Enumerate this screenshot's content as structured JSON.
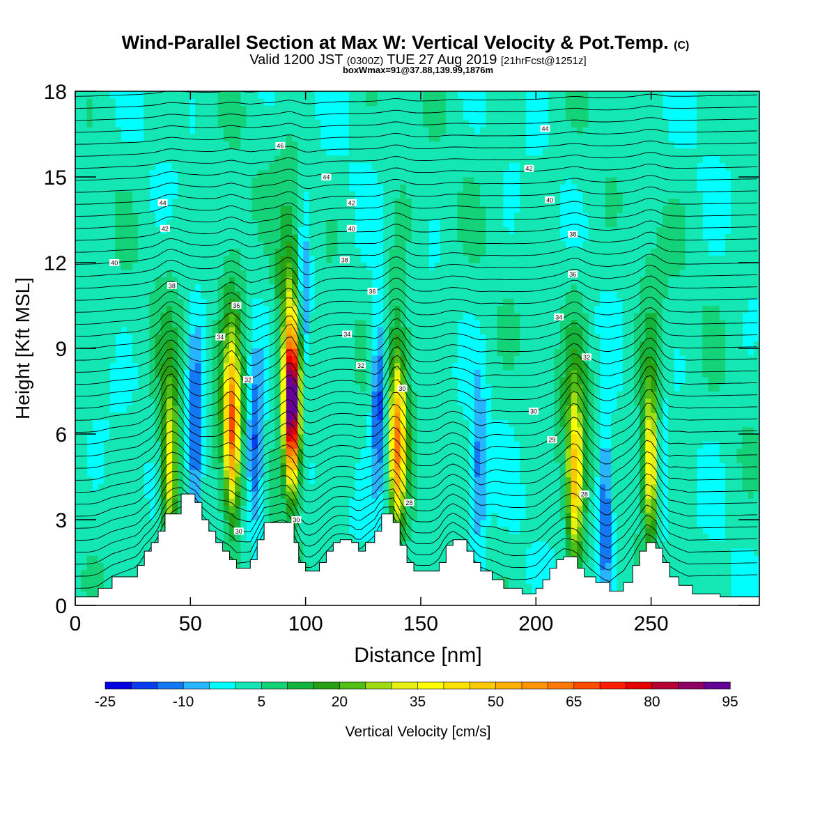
{
  "chart_data": {
    "type": "heatmap",
    "title": "Wind-Parallel Section at Max W: Vertical Velocity & Pot.Temp.",
    "title_mark": "(C)",
    "subtitle": {
      "a": "Valid 1200 JST",
      "b": "(0300Z)",
      "c": "TUE 27 Aug 2019",
      "d": "[21hrFcst@1251z]"
    },
    "subtitle2": "boxWmax=91@37.88,139.99,1876m",
    "xlabel": "Distance [nm]",
    "ylabel": "Height [Kft MSL]",
    "xlim": [
      0,
      297
    ],
    "ylim": [
      0,
      18
    ],
    "xticks": [
      "0",
      "50",
      "100",
      "150",
      "200",
      "250"
    ],
    "xtick_values": [
      0,
      50,
      100,
      150,
      200,
      250
    ],
    "yticks": [
      "0",
      "3",
      "6",
      "9",
      "12",
      "15",
      "18"
    ],
    "ytick_values": [
      0,
      3,
      6,
      9,
      12,
      15,
      18
    ],
    "colorbar": {
      "label": "Vertical Velocity [cm/s]",
      "tick_labels": [
        "-25",
        "-10",
        "5",
        "20",
        "35",
        "50",
        "65",
        "80",
        "95"
      ],
      "tick_values": [
        -25,
        -10,
        5,
        20,
        35,
        50,
        65,
        80,
        95
      ],
      "levels": [
        -25,
        -20,
        -15,
        -10,
        -5,
        0,
        5,
        10,
        15,
        20,
        25,
        30,
        35,
        40,
        45,
        50,
        55,
        60,
        65,
        70,
        75,
        80,
        85,
        90,
        95
      ],
      "colors": [
        "#0000e6",
        "#0a3cf0",
        "#1478f5",
        "#28b4ff",
        "#00ffff",
        "#14e6b4",
        "#14d278",
        "#14b43c",
        "#28a014",
        "#50be14",
        "#a0dc14",
        "#e6f014",
        "#ffff00",
        "#ffe100",
        "#ffc800",
        "#ffaf00",
        "#ff9600",
        "#ff7800",
        "#ff4b00",
        "#ff1e00",
        "#e60000",
        "#b40032",
        "#8c0064",
        "#640096"
      ]
    },
    "theta_contour_labels": [
      {
        "x": 38,
        "y": 14.1,
        "text": "44"
      },
      {
        "x": 39,
        "y": 13.2,
        "text": "42"
      },
      {
        "x": 17,
        "y": 12.0,
        "text": "40"
      },
      {
        "x": 42,
        "y": 11.2,
        "text": "38"
      },
      {
        "x": 70,
        "y": 10.5,
        "text": "36"
      },
      {
        "x": 63,
        "y": 9.4,
        "text": "34"
      },
      {
        "x": 75,
        "y": 7.9,
        "text": "32"
      },
      {
        "x": 89,
        "y": 16.1,
        "text": "46"
      },
      {
        "x": 109,
        "y": 15.0,
        "text": "44"
      },
      {
        "x": 120,
        "y": 14.1,
        "text": "42"
      },
      {
        "x": 120,
        "y": 13.2,
        "text": "40"
      },
      {
        "x": 117,
        "y": 12.1,
        "text": "38"
      },
      {
        "x": 129,
        "y": 11.0,
        "text": "36"
      },
      {
        "x": 118,
        "y": 9.5,
        "text": "34"
      },
      {
        "x": 124,
        "y": 8.4,
        "text": "32"
      },
      {
        "x": 142,
        "y": 7.6,
        "text": "30"
      },
      {
        "x": 71,
        "y": 2.6,
        "text": "30"
      },
      {
        "x": 96,
        "y": 3.0,
        "text": "30"
      },
      {
        "x": 145,
        "y": 3.6,
        "text": "28"
      },
      {
        "x": 204,
        "y": 16.7,
        "text": "44"
      },
      {
        "x": 197,
        "y": 15.3,
        "text": "42"
      },
      {
        "x": 206,
        "y": 14.2,
        "text": "40"
      },
      {
        "x": 216,
        "y": 13.0,
        "text": "38"
      },
      {
        "x": 216,
        "y": 11.6,
        "text": "36"
      },
      {
        "x": 210,
        "y": 10.1,
        "text": "34"
      },
      {
        "x": 222,
        "y": 8.7,
        "text": "32"
      },
      {
        "x": 199,
        "y": 6.8,
        "text": "30"
      },
      {
        "x": 207,
        "y": 5.8,
        "text": "29"
      },
      {
        "x": 221,
        "y": 3.9,
        "text": "28"
      }
    ],
    "terrain": [
      [
        0,
        0.3
      ],
      [
        10,
        0.6
      ],
      [
        16,
        1.0
      ],
      [
        27,
        1.4
      ],
      [
        30,
        1.9
      ],
      [
        33,
        2.2
      ],
      [
        36,
        2.6
      ],
      [
        39,
        3.2
      ],
      [
        46,
        3.9
      ],
      [
        52,
        3.6
      ],
      [
        55,
        3.0
      ],
      [
        58,
        2.6
      ],
      [
        61,
        2.2
      ],
      [
        64,
        1.9
      ],
      [
        67,
        1.6
      ],
      [
        70,
        1.3
      ],
      [
        76,
        1.6
      ],
      [
        79,
        2.3
      ],
      [
        82,
        2.9
      ],
      [
        91,
        2.9
      ],
      [
        95,
        2.2
      ],
      [
        97,
        1.5
      ],
      [
        100,
        1.2
      ],
      [
        103,
        1.2
      ],
      [
        106,
        1.5
      ],
      [
        109,
        1.9
      ],
      [
        112,
        2.2
      ],
      [
        115,
        2.3
      ],
      [
        120,
        2.2
      ],
      [
        123,
        1.9
      ],
      [
        126,
        2.2
      ],
      [
        130,
        2.6
      ],
      [
        133,
        3.2
      ],
      [
        138,
        2.9
      ],
      [
        141,
        2.1
      ],
      [
        144,
        1.5
      ],
      [
        147,
        1.2
      ],
      [
        155,
        1.2
      ],
      [
        158,
        1.5
      ],
      [
        161,
        2.1
      ],
      [
        164,
        2.3
      ],
      [
        170,
        1.9
      ],
      [
        173,
        1.5
      ],
      [
        176,
        1.2
      ],
      [
        181,
        0.9
      ],
      [
        186,
        0.6
      ],
      [
        194,
        0.4
      ],
      [
        200,
        0.6
      ],
      [
        203,
        0.9
      ],
      [
        206,
        1.3
      ],
      [
        209,
        1.6
      ],
      [
        212,
        1.7
      ],
      [
        218,
        1.3
      ],
      [
        221,
        1.0
      ],
      [
        226,
        0.8
      ],
      [
        232,
        0.5
      ],
      [
        238,
        0.8
      ],
      [
        242,
        1.4
      ],
      [
        245,
        1.9
      ],
      [
        248,
        2.2
      ],
      [
        252,
        2.0
      ],
      [
        255,
        1.5
      ],
      [
        258,
        1.0
      ],
      [
        262,
        0.7
      ],
      [
        268,
        0.4
      ],
      [
        280,
        0.3
      ],
      [
        297,
        0.3
      ]
    ],
    "updrafts": [
      {
        "x": 41,
        "z": 4.8,
        "w": 32
      },
      {
        "x": 68,
        "z": 6.2,
        "w": 55
      },
      {
        "x": 94,
        "z": 7.0,
        "w": 91
      },
      {
        "x": 140,
        "z": 5.6,
        "w": 48
      },
      {
        "x": 217,
        "z": 4.4,
        "w": 42
      },
      {
        "x": 250,
        "z": 5.0,
        "w": 38
      }
    ],
    "downdrafts": [
      {
        "x": 52,
        "z": 6.2,
        "w": -22
      },
      {
        "x": 78,
        "z": 5.4,
        "w": -20
      },
      {
        "x": 99,
        "z": 10.5,
        "w": -24
      },
      {
        "x": 132,
        "z": 7.2,
        "w": -23
      },
      {
        "x": 175,
        "z": 4.6,
        "w": -14
      },
      {
        "x": 230,
        "z": 3.4,
        "w": -20
      },
      {
        "x": 254,
        "z": 4.8,
        "w": -12
      }
    ],
    "grid": false
  }
}
